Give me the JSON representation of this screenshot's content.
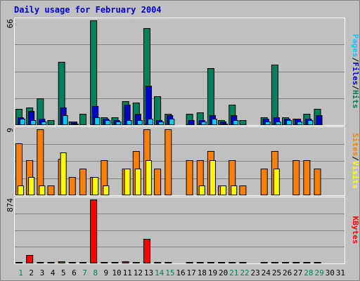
{
  "chart_data": {
    "type": "bar",
    "title": "Daily usage for February 2004",
    "colors": {
      "background": "#C0C0C0",
      "border": "#808080",
      "gridline": "#808080",
      "title": "#0000CC",
      "weekday_label": "#000000",
      "weekend_label": "#00805C",
      "hits": "#00805C",
      "files": "#0000CC",
      "pages": "#00CCFF",
      "visits": "#FF8000",
      "sites": "#FFFF00",
      "kbytes": "#FF0000"
    },
    "weekend_days": [
      1,
      7,
      8,
      14,
      15,
      21,
      22,
      28,
      29
    ],
    "days": [
      "1",
      "2",
      "3",
      "4",
      "5",
      "6",
      "7",
      "8",
      "9",
      "10",
      "11",
      "12",
      "13",
      "14",
      "15",
      "16",
      "17",
      "18",
      "19",
      "20",
      "21",
      "22",
      "23",
      "24",
      "25",
      "26",
      "27",
      "28",
      "29",
      "30",
      "31"
    ],
    "panels": [
      {
        "id": "hits-files-pages",
        "ymax": 66,
        "ymax_label": "66",
        "side_label_parts": [
          {
            "text": "Pages",
            "color_key": "pages"
          },
          {
            "text": "/",
            "color_key": "weekday_label"
          },
          {
            "text": "Files",
            "color_key": "files"
          },
          {
            "text": "/",
            "color_key": "weekday_label"
          },
          {
            "text": "Hits",
            "color_key": "hits"
          }
        ],
        "series": [
          {
            "key": "hits",
            "color_key": "hits",
            "values": [
              10,
              11,
              17,
              3,
              40,
              2,
              7,
              66,
              5,
              5,
              15,
              14,
              61,
              18,
              7,
              0,
              7,
              8,
              36,
              3,
              13,
              3,
              0,
              5,
              38,
              5,
              4,
              7,
              10,
              0,
              0
            ]
          },
          {
            "key": "files",
            "color_key": "files",
            "values": [
              5,
              9,
              4,
              0,
              11,
              2,
              0,
              12,
              4,
              3,
              13,
              7,
              25,
              3,
              6,
              0,
              3,
              3,
              6,
              2,
              6,
              0,
              0,
              4,
              5,
              4,
              4,
              4,
              6,
              0,
              0
            ]
          },
          {
            "key": "pages",
            "color_key": "pages",
            "values": [
              4,
              3,
              2,
              0,
              6,
              1,
              0,
              5,
              3,
              2,
              3,
              3,
              4,
              2,
              4,
              0,
              0,
              2,
              4,
              1,
              3,
              0,
              0,
              2,
              2,
              3,
              2,
              3,
              0,
              0,
              0
            ]
          }
        ]
      },
      {
        "id": "visits-sites",
        "ymax": 9,
        "ymax_label": "9",
        "side_label_parts": [
          {
            "text": "Sites",
            "color_key": "visits"
          },
          {
            "text": "/",
            "color_key": "weekday_label"
          },
          {
            "text": "Visits",
            "color_key": "sites"
          }
        ],
        "series": [
          {
            "key": "visits",
            "color_key": "visits",
            "values": [
              7.1,
              4.8,
              9.0,
              1.3,
              5.0,
              2.5,
              3.6,
              2.5,
              4.8,
              0,
              3.6,
              6.0,
              9.0,
              3.6,
              9.0,
              0,
              4.8,
              4.8,
              6.0,
              1.3,
              4.8,
              1.3,
              0,
              3.6,
              6.0,
              0,
              4.8,
              4.8,
              3.6,
              0,
              0
            ]
          },
          {
            "key": "sites",
            "color_key": "sites",
            "values": [
              1.3,
              2.5,
              1.3,
              0,
              5.8,
              0,
              0,
              2.5,
              1.3,
              0,
              3.6,
              3.6,
              4.8,
              0,
              0,
              0,
              0,
              1.3,
              4.8,
              1.3,
              1.3,
              0,
              0,
              0,
              3.6,
              0,
              0,
              0,
              0,
              0,
              0
            ]
          }
        ]
      },
      {
        "id": "kbytes",
        "ymax": 874,
        "ymax_label": "874",
        "side_label_parts": [
          {
            "text": "KBytes",
            "color_key": "kbytes"
          }
        ],
        "series": [
          {
            "key": "kbytes",
            "color_key": "kbytes",
            "values": [
              8,
              120,
              8,
              8,
              25,
              8,
              8,
              874,
              8,
              8,
              30,
              8,
              340,
              8,
              20,
              0,
              8,
              8,
              8,
              8,
              8,
              8,
              0,
              8,
              8,
              8,
              8,
              8,
              8,
              0,
              0
            ]
          }
        ]
      }
    ]
  }
}
